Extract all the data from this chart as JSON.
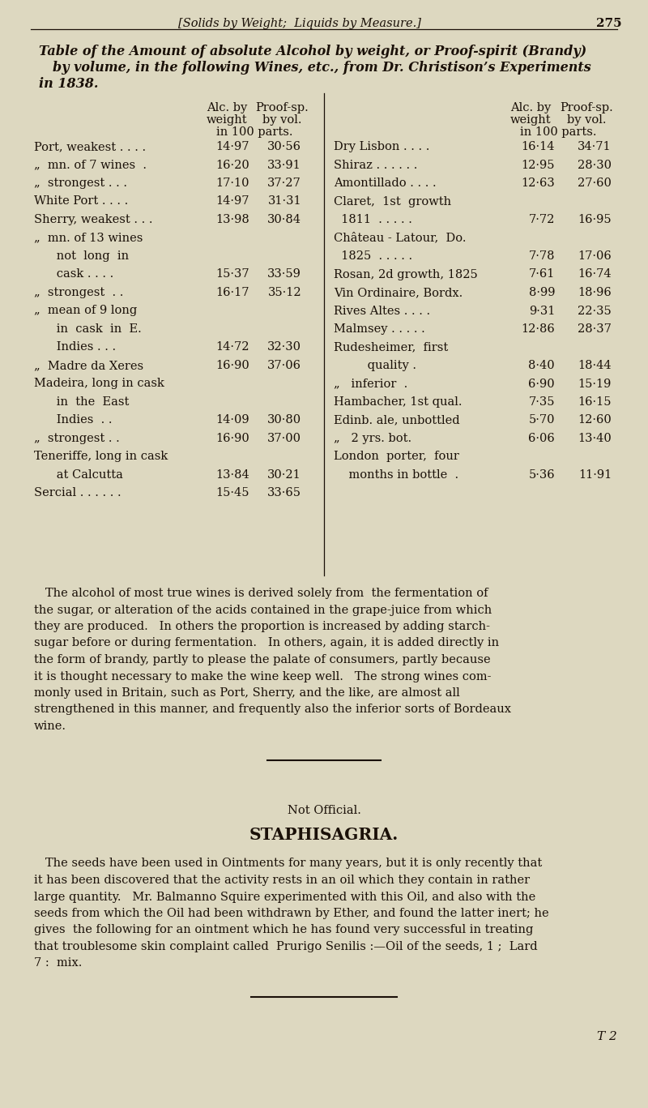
{
  "bg_color": "#ddd8c0",
  "text_color": "#1a1008",
  "header_text": "[Solids by Weight;  Liquids by Measure.]",
  "page_number": "275",
  "title_lines": [
    "Table of the Amount of absolute Alcohol by weight, or Proof-spirit (Brandy)",
    "by volume, in the following Wines, etc., from Dr. Christison’s Experiments",
    "in 1838."
  ],
  "left_rows": [
    {
      "label": "Port, weakest . . . .",
      "v1": "14·97",
      "v2": "30·56"
    },
    {
      "label": "„  mn. of 7 wines  .",
      "v1": "16·20",
      "v2": "33·91"
    },
    {
      "label": "„  strongest . . .",
      "v1": "17·10",
      "v2": "37·27"
    },
    {
      "label": "White Port . . . .",
      "v1": "14·97",
      "v2": "31·31"
    },
    {
      "label": "Sherry, weakest . . .",
      "v1": "13·98",
      "v2": "30·84"
    },
    {
      "label": "„  mn. of 13 wines",
      "v1": "",
      "v2": ""
    },
    {
      "label": "      not  long  in",
      "v1": "",
      "v2": ""
    },
    {
      "label": "      cask . . . .",
      "v1": "15·37",
      "v2": "33·59"
    },
    {
      "label": "„  strongest  . .",
      "v1": "16·17",
      "v2": "35·12"
    },
    {
      "label": "„  mean of 9 long",
      "v1": "",
      "v2": ""
    },
    {
      "label": "      in  cask  in  E.",
      "v1": "",
      "v2": ""
    },
    {
      "label": "      Indies . . .",
      "v1": "14·72",
      "v2": "32·30"
    },
    {
      "label": "„  Madre da Xeres",
      "v1": "16·90",
      "v2": "37·06"
    },
    {
      "label": "Madeira, long in cask",
      "v1": "",
      "v2": ""
    },
    {
      "label": "      in  the  East",
      "v1": "",
      "v2": ""
    },
    {
      "label": "      Indies  . .",
      "v1": "14·09",
      "v2": "30·80"
    },
    {
      "label": "„  strongest . .",
      "v1": "16·90",
      "v2": "37·00"
    },
    {
      "label": "Teneriffe, long in cask",
      "v1": "",
      "v2": ""
    },
    {
      "label": "      at Calcutta",
      "v1": "13·84",
      "v2": "30·21"
    },
    {
      "label": "Sercial . . . . . .",
      "v1": "15·45",
      "v2": "33·65"
    }
  ],
  "right_rows": [
    {
      "label": "Dry Lisbon . . . .",
      "v1": "16·14",
      "v2": "34·71"
    },
    {
      "label": "Shiraz . . . . . .",
      "v1": "12·95",
      "v2": "28·30"
    },
    {
      "label": "Amontillado . . . .",
      "v1": "12·63",
      "v2": "27·60"
    },
    {
      "label": "Claret,  1st  growth",
      "v1": "",
      "v2": ""
    },
    {
      "label": "  1811  . . . . .",
      "v1": "7·72",
      "v2": "16·95"
    },
    {
      "label": "Château - Latour,  Do.",
      "v1": "",
      "v2": ""
    },
    {
      "label": "  1825  . . . . .",
      "v1": "7·78",
      "v2": "17·06"
    },
    {
      "label": "Rosan, 2d growth, 1825",
      "v1": "7·61",
      "v2": "16·74"
    },
    {
      "label": "Vin Ordinaire, Bordx.",
      "v1": "8·99",
      "v2": "18·96"
    },
    {
      "label": "Rives Altes . . . .",
      "v1": "9·31",
      "v2": "22·35"
    },
    {
      "label": "Malmsey . . . . .",
      "v1": "12·86",
      "v2": "28·37"
    },
    {
      "label": "Rudesheimer,  first",
      "v1": "",
      "v2": ""
    },
    {
      "label": "         quality .",
      "v1": "8·40",
      "v2": "18·44"
    },
    {
      "label": "„   inferior  .",
      "v1": "6·90",
      "v2": "15·19"
    },
    {
      "label": "Hambacher, 1st qual.",
      "v1": "7·35",
      "v2": "16·15"
    },
    {
      "label": "Edinb. ale, unbottled",
      "v1": "5·70",
      "v2": "12·60"
    },
    {
      "label": "„   2 yrs. bot.",
      "v1": "6·06",
      "v2": "13·40"
    },
    {
      "label": "London  porter,  four",
      "v1": "",
      "v2": ""
    },
    {
      "label": "    months in bottle  .",
      "v1": "5·36",
      "v2": "11·91"
    }
  ],
  "para1_lines": [
    "   The alcohol of most true wines is derived solely from  the fermentation of",
    "the sugar, or alteration of the acids contained in the grape-juice from which",
    "they are produced.   In others the proportion is increased by adding starch-",
    "sugar before or during fermentation.   In others, again, it is added directly in",
    "the form of brandy, partly to please the palate of consumers, partly because",
    "it is thought necessary to make the wine keep well.   The strong wines com-",
    "monly used in Britain, such as Port, Sherry, and the like, are almost all",
    "strengthened in this manner, and frequently also the inferior sorts of Bordeaux",
    "wine."
  ],
  "not_official": "Not Official.",
  "section_title": "STAPHISAGRIA.",
  "para2_lines": [
    "   The seeds have been used in Ointments for many years, but it is only recently that",
    "it has been discovered that the activity rests in an oil which they contain in rather",
    "large quantity.   Mr. Balmanno Squire experimented with this Oil, and also with the",
    "seeds from which the Oil had been withdrawn by Ether, and found the latter inert; he",
    "gives  the following for an ointment which he has found very successful in treating",
    "that troublesome skin complaint called  Prurigo Senilis :—Oil of the seeds, 1 ;  Lard",
    "7 :  mix."
  ],
  "footer": "T 2"
}
